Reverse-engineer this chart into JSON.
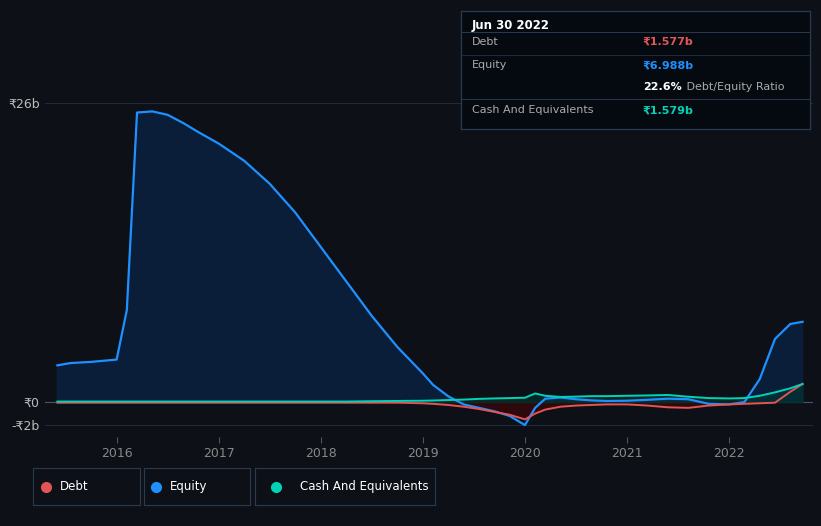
{
  "bg_color": "#0d1117",
  "grid_color": "#1e2d3d",
  "equity_color": "#1e90ff",
  "equity_fill": "#0a1e3a",
  "debt_color": "#e05555",
  "cash_color": "#00d4b4",
  "title_text": "Jun 30 2022",
  "info_debt_label": "Debt",
  "info_debt_val": "₹1.577b",
  "info_equity_label": "Equity",
  "info_equity_val": "₹6.988b",
  "info_ratio_pct": "22.6%",
  "info_ratio_rest": " Debt/Equity Ratio",
  "info_cash_label": "Cash And Equivalents",
  "info_cash_val": "₹1.579b",
  "ylabel_26": "₹26b",
  "ylabel_0": "₹0",
  "ylabel_neg2": "-₹2b",
  "xtick_labels": [
    "2016",
    "2017",
    "2018",
    "2019",
    "2020",
    "2021",
    "2022"
  ],
  "xtick_pos": [
    2016,
    2017,
    2018,
    2019,
    2020,
    2021,
    2022
  ],
  "ylim": [
    -3.0,
    29.5
  ],
  "xlim": [
    2015.3,
    2022.82
  ],
  "x": [
    2015.42,
    2015.55,
    2015.75,
    2016.0,
    2016.1,
    2016.2,
    2016.35,
    2016.5,
    2016.65,
    2016.8,
    2017.0,
    2017.25,
    2017.5,
    2017.75,
    2018.0,
    2018.25,
    2018.5,
    2018.75,
    2019.0,
    2019.1,
    2019.25,
    2019.4,
    2019.55,
    2019.7,
    2019.85,
    2020.0,
    2020.1,
    2020.2,
    2020.35,
    2020.5,
    2020.65,
    2020.8,
    2021.0,
    2021.2,
    2021.4,
    2021.6,
    2021.8,
    2022.0,
    2022.15,
    2022.3,
    2022.45,
    2022.6,
    2022.72
  ],
  "equity_y": [
    3.2,
    3.4,
    3.5,
    3.7,
    8.0,
    25.2,
    25.3,
    25.0,
    24.3,
    23.5,
    22.5,
    21.0,
    19.0,
    16.5,
    13.5,
    10.5,
    7.5,
    4.8,
    2.5,
    1.5,
    0.5,
    -0.2,
    -0.5,
    -0.8,
    -1.2,
    -2.0,
    -0.5,
    0.3,
    0.4,
    0.25,
    0.15,
    0.1,
    0.12,
    0.2,
    0.3,
    0.25,
    -0.15,
    -0.2,
    0.0,
    2.0,
    5.5,
    6.8,
    6.988
  ],
  "debt_y": [
    -0.05,
    -0.05,
    -0.05,
    -0.05,
    -0.05,
    -0.05,
    -0.05,
    -0.05,
    -0.05,
    -0.05,
    -0.05,
    -0.05,
    -0.05,
    -0.05,
    -0.05,
    -0.05,
    -0.05,
    -0.05,
    -0.1,
    -0.15,
    -0.25,
    -0.4,
    -0.6,
    -0.85,
    -1.1,
    -1.5,
    -1.0,
    -0.65,
    -0.4,
    -0.3,
    -0.25,
    -0.2,
    -0.2,
    -0.3,
    -0.45,
    -0.5,
    -0.3,
    -0.2,
    -0.15,
    -0.1,
    -0.05,
    0.9,
    1.577
  ],
  "cash_y": [
    0.05,
    0.05,
    0.05,
    0.05,
    0.05,
    0.05,
    0.05,
    0.05,
    0.05,
    0.05,
    0.05,
    0.05,
    0.05,
    0.05,
    0.05,
    0.05,
    0.08,
    0.1,
    0.12,
    0.14,
    0.18,
    0.22,
    0.28,
    0.32,
    0.35,
    0.38,
    0.75,
    0.55,
    0.45,
    0.48,
    0.52,
    0.52,
    0.55,
    0.58,
    0.62,
    0.47,
    0.35,
    0.32,
    0.35,
    0.55,
    0.85,
    1.2,
    1.579
  ],
  "legend_items": [
    {
      "label": "Debt",
      "color": "#e05555"
    },
    {
      "label": "Equity",
      "color": "#1e90ff"
    },
    {
      "label": "Cash And Equivalents",
      "color": "#00d4b4"
    }
  ]
}
